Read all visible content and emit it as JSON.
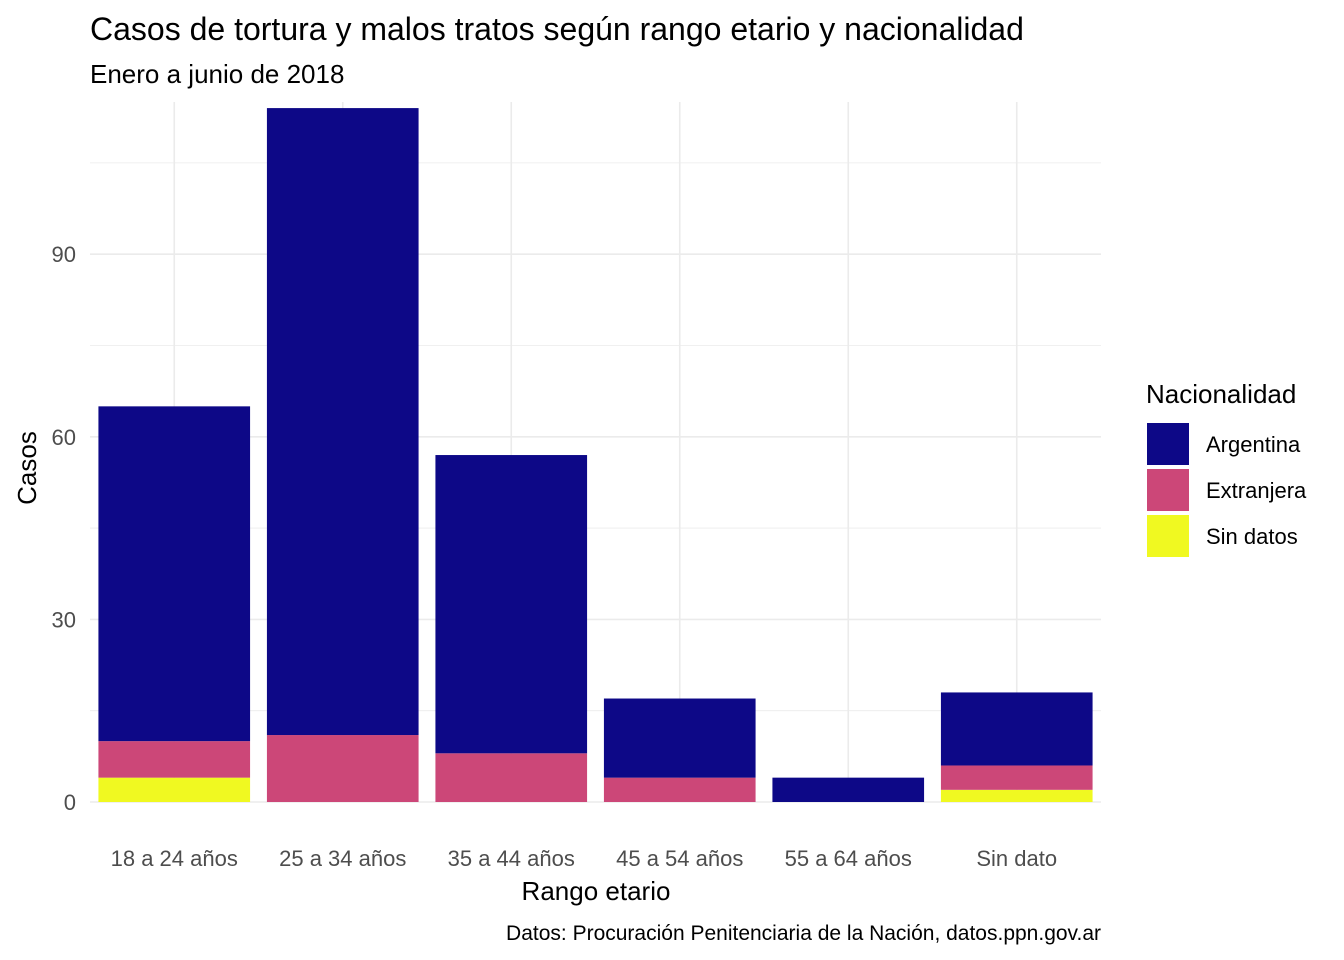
{
  "chart_data": {
    "type": "bar",
    "stacked": true,
    "title": "Casos de tortura y malos tratos según rango etario y nacionalidad",
    "subtitle": "Enero a junio de 2018",
    "xlabel": "Rango etario",
    "ylabel": "Casos",
    "caption": "Datos: Procuración Penitenciaria de la Nación, datos.ppn.gov.ar",
    "legend_title": "Nacionalidad",
    "legend_position": "right",
    "grid": true,
    "ylim": [
      0,
      115
    ],
    "yticks": [
      0,
      30,
      60,
      90
    ],
    "categories": [
      "18 a 24 años",
      "25 a 34 años",
      "35 a 44 años",
      "45 a 54 años",
      "55 a 64 años",
      "Sin dato"
    ],
    "series": [
      {
        "name": "Argentina",
        "color": "#0d0887",
        "values": [
          55,
          103,
          49,
          13,
          4,
          12
        ]
      },
      {
        "name": "Extranjera",
        "color": "#cc4778",
        "values": [
          6,
          11,
          8,
          4,
          0,
          4
        ]
      },
      {
        "name": "Sin datos",
        "color": "#f0f921",
        "values": [
          4,
          0,
          0,
          0,
          0,
          2
        ]
      }
    ]
  }
}
